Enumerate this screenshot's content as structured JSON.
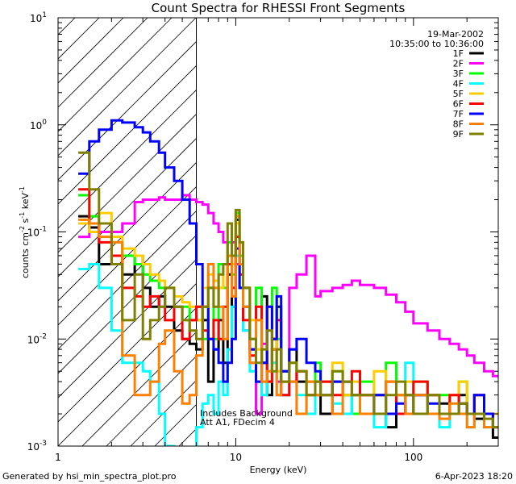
{
  "chart_data": {
    "type": "line",
    "title": "Count Spectra for RHESSI Front Segments",
    "xlabel": "Energy (keV)",
    "ylabel": "counts cm",
    "ylabel_sup1": "-2",
    "ylabel_mid": " s",
    "ylabel_sup2": "-1",
    "ylabel_end": " keV",
    "ylabel_sup3": "-1",
    "xscale": "log",
    "yscale": "log",
    "xlim": [
      1,
      300
    ],
    "ylim": [
      0.001,
      10
    ],
    "x_ticks": [
      {
        "value": 1,
        "label": "1"
      },
      {
        "value": 10,
        "label": "10"
      },
      {
        "value": 100,
        "label": "100"
      }
    ],
    "y_ticks": [
      {
        "value": 0.001,
        "base": "10",
        "exp": "-3"
      },
      {
        "value": 0.01,
        "base": "10",
        "exp": "-2"
      },
      {
        "value": 0.1,
        "base": "10",
        "exp": "-1"
      },
      {
        "value": 1,
        "base": "10",
        "exp": "0"
      },
      {
        "value": 10,
        "base": "10",
        "exp": "1"
      }
    ],
    "attenuator_shade_xrange": [
      1,
      6
    ],
    "legend_position": "top-right",
    "date": "19-Mar-2002",
    "time_range": "10:35:00 to 10:36:00",
    "annotation_line1": "Includes Background",
    "annotation_line2": "Att A1, FDecim 4",
    "series": [
      {
        "name": "1F",
        "color": "#000000",
        "x": [
          1.3,
          1.5,
          1.7,
          2.0,
          2.3,
          2.7,
          3.0,
          3.3,
          3.7,
          4.0,
          4.5,
          5.0,
          5.5,
          6.0,
          6.5,
          7,
          7.5,
          8,
          8.5,
          9,
          9.5,
          10,
          10.5,
          11,
          12,
          13,
          14,
          15,
          16,
          17,
          18,
          20,
          22,
          25,
          28,
          30,
          35,
          40,
          45,
          50,
          60,
          70,
          80,
          90,
          100,
          120,
          140,
          160,
          180,
          200,
          220,
          250,
          280
        ],
        "y": [
          0.14,
          0.11,
          0.05,
          0.06,
          0.04,
          0.06,
          0.03,
          0.02,
          0.025,
          0.02,
          0.012,
          0.01,
          0.009,
          0.008,
          0.015,
          0.004,
          0.008,
          0.015,
          0.006,
          0.04,
          0.02,
          0.13,
          0.05,
          0.03,
          0.008,
          0.004,
          0.025,
          0.003,
          0.008,
          0.02,
          0.005,
          0.008,
          0.004,
          0.004,
          0.003,
          0.002,
          0.004,
          0.003,
          0.002,
          0.003,
          0.002,
          0.0015,
          0.003,
          0.002,
          0.003,
          0.002,
          0.0025,
          0.002,
          0.003,
          0.002,
          0.0018,
          0.002,
          0.0012
        ]
      },
      {
        "name": "2F",
        "color": "#ff00ff",
        "x": [
          1.3,
          1.5,
          1.7,
          2.0,
          2.3,
          2.7,
          3.0,
          3.3,
          3.7,
          4.0,
          4.5,
          5.0,
          5.5,
          6.0,
          6.5,
          7,
          7.5,
          8,
          8.5,
          9,
          9.5,
          10,
          10.5,
          11,
          12,
          13,
          14,
          15,
          16,
          17,
          18,
          20,
          22,
          25,
          28,
          30,
          35,
          40,
          45,
          50,
          60,
          70,
          80,
          90,
          100,
          120,
          140,
          160,
          180,
          200,
          220,
          250,
          280
        ],
        "y": [
          0.09,
          0.12,
          0.1,
          0.1,
          0.12,
          0.19,
          0.2,
          0.2,
          0.21,
          0.2,
          0.2,
          0.22,
          0.2,
          0.19,
          0.18,
          0.15,
          0.12,
          0.1,
          0.08,
          0.06,
          0.08,
          0.05,
          0.03,
          0.012,
          0.006,
          0.002,
          0.009,
          0.02,
          0.006,
          0.004,
          0.003,
          0.03,
          0.04,
          0.06,
          0.025,
          0.028,
          0.03,
          0.032,
          0.035,
          0.032,
          0.03,
          0.026,
          0.022,
          0.018,
          0.014,
          0.012,
          0.01,
          0.009,
          0.008,
          0.007,
          0.006,
          0.005,
          0.0045
        ]
      },
      {
        "name": "3F",
        "color": "#00ff00",
        "x": [
          1.3,
          1.5,
          1.7,
          2.0,
          2.3,
          2.7,
          3.0,
          3.3,
          3.7,
          4.0,
          4.5,
          5.0,
          5.5,
          6.0,
          6.5,
          7,
          7.5,
          8,
          8.5,
          9,
          9.5,
          10,
          10.5,
          11,
          12,
          13,
          14,
          15,
          16,
          17,
          18,
          20,
          22,
          25,
          28,
          30,
          35,
          40,
          45,
          50,
          60,
          70,
          80,
          90,
          100,
          120,
          140,
          160,
          180,
          200,
          220,
          250,
          280
        ],
        "y": [
          0.22,
          0.14,
          0.12,
          0.08,
          0.06,
          0.05,
          0.04,
          0.035,
          0.03,
          0.03,
          0.02,
          0.02,
          0.015,
          0.02,
          0.01,
          0.03,
          0.01,
          0.05,
          0.03,
          0.08,
          0.04,
          0.15,
          0.06,
          0.02,
          0.01,
          0.03,
          0.006,
          0.004,
          0.03,
          0.01,
          0.004,
          0.006,
          0.005,
          0.003,
          0.006,
          0.004,
          0.005,
          0.003,
          0.002,
          0.004,
          0.003,
          0.006,
          0.002,
          0.003,
          0.004,
          0.002,
          0.003,
          0.002,
          0.004,
          0.002,
          0.003,
          0.002,
          0.002
        ]
      },
      {
        "name": "4F",
        "color": "#00ffff",
        "x": [
          1.3,
          1.5,
          1.7,
          2.0,
          2.3,
          2.7,
          3.0,
          3.3,
          3.7,
          4.0,
          4.5,
          5.0,
          5.5,
          6.0,
          6.5,
          7,
          7.5,
          8,
          8.5,
          9,
          9.5,
          10,
          10.5,
          11,
          12,
          13,
          14,
          15,
          16,
          17,
          18,
          20,
          22,
          25,
          28,
          30,
          35,
          40,
          45,
          50,
          60,
          70,
          80,
          90,
          100,
          120,
          140,
          160,
          180,
          200,
          220,
          250,
          280
        ],
        "y": [
          0.045,
          0.05,
          0.03,
          0.012,
          0.006,
          0.006,
          0.005,
          0.004,
          0.002,
          0.001,
          0.0008,
          0.0007,
          0.0008,
          0.0015,
          0.0025,
          0.003,
          0.002,
          0.004,
          0.003,
          0.008,
          0.02,
          0.06,
          0.03,
          0.012,
          0.005,
          0.004,
          0.003,
          0.004,
          0.006,
          0.003,
          0.003,
          0.004,
          0.003,
          0.002,
          0.004,
          0.003,
          0.0025,
          0.002,
          0.003,
          0.002,
          0.0015,
          0.002,
          0.003,
          0.006,
          0.002,
          0.003,
          0.0015,
          0.002,
          0.002,
          0.0015,
          0.002,
          0.0015,
          0.0015
        ]
      },
      {
        "name": "5F",
        "color": "#ffcc00",
        "x": [
          1.3,
          1.5,
          1.7,
          2.0,
          2.3,
          2.7,
          3.0,
          3.3,
          3.7,
          4.0,
          4.5,
          5.0,
          5.5,
          6.0,
          6.5,
          7,
          7.5,
          8,
          8.5,
          9,
          9.5,
          10,
          10.5,
          11,
          12,
          13,
          14,
          15,
          16,
          17,
          18,
          20,
          22,
          25,
          28,
          30,
          35,
          40,
          45,
          50,
          60,
          70,
          80,
          90,
          100,
          120,
          140,
          160,
          180,
          200,
          220,
          250,
          280
        ],
        "y": [
          0.12,
          0.1,
          0.15,
          0.09,
          0.07,
          0.06,
          0.05,
          0.04,
          0.035,
          0.03,
          0.025,
          0.022,
          0.02,
          0.015,
          0.03,
          0.04,
          0.035,
          0.03,
          0.05,
          0.06,
          0.05,
          0.12,
          0.08,
          0.03,
          0.015,
          0.008,
          0.004,
          0.005,
          0.01,
          0.005,
          0.004,
          0.006,
          0.005,
          0.004,
          0.003,
          0.004,
          0.006,
          0.003,
          0.004,
          0.003,
          0.005,
          0.004,
          0.003,
          0.004,
          0.003,
          0.003,
          0.002,
          0.003,
          0.004,
          0.002,
          0.003,
          0.002,
          0.002
        ]
      },
      {
        "name": "6F",
        "color": "#ff0000",
        "x": [
          1.3,
          1.5,
          1.7,
          2.0,
          2.3,
          2.7,
          3.0,
          3.3,
          3.7,
          4.0,
          4.5,
          5.0,
          5.5,
          6.0,
          6.5,
          7,
          7.5,
          8,
          8.5,
          9,
          9.5,
          10,
          10.5,
          11,
          12,
          13,
          14,
          15,
          16,
          17,
          18,
          20,
          22,
          25,
          28,
          30,
          35,
          40,
          45,
          50,
          60,
          70,
          80,
          90,
          100,
          120,
          140,
          160,
          180,
          200,
          220,
          250,
          280
        ],
        "y": [
          0.25,
          0.12,
          0.08,
          0.06,
          0.03,
          0.025,
          0.02,
          0.025,
          0.02,
          0.015,
          0.02,
          0.01,
          0.015,
          0.02,
          0.012,
          0.01,
          0.015,
          0.01,
          0.02,
          0.05,
          0.03,
          0.09,
          0.04,
          0.015,
          0.007,
          0.02,
          0.006,
          0.004,
          0.01,
          0.015,
          0.003,
          0.004,
          0.005,
          0.003,
          0.004,
          0.004,
          0.003,
          0.004,
          0.005,
          0.003,
          0.003,
          0.004,
          0.002,
          0.003,
          0.004,
          0.003,
          0.002,
          0.003,
          0.0025,
          0.002,
          0.003,
          0.002,
          0.0015
        ]
      },
      {
        "name": "7F",
        "color": "#0000ff",
        "x": [
          1.3,
          1.5,
          1.7,
          2.0,
          2.3,
          2.7,
          3.0,
          3.3,
          3.7,
          4.0,
          4.5,
          5.0,
          5.5,
          6.0,
          6.5,
          7,
          7.5,
          8,
          8.5,
          9,
          9.5,
          10,
          10.5,
          11,
          12,
          13,
          14,
          15,
          16,
          17,
          18,
          20,
          22,
          25,
          28,
          30,
          35,
          40,
          45,
          50,
          60,
          70,
          80,
          90,
          100,
          120,
          140,
          160,
          180,
          200,
          220,
          250,
          280
        ],
        "y": [
          0.35,
          0.7,
          0.9,
          1.1,
          1.05,
          0.95,
          0.85,
          0.7,
          0.55,
          0.4,
          0.3,
          0.2,
          0.12,
          0.05,
          0.02,
          0.01,
          0.008,
          0.006,
          0.004,
          0.006,
          0.01,
          0.07,
          0.03,
          0.02,
          0.008,
          0.004,
          0.006,
          0.02,
          0.01,
          0.025,
          0.005,
          0.008,
          0.01,
          0.006,
          0.005,
          0.003,
          0.004,
          0.004,
          0.003,
          0.002,
          0.003,
          0.002,
          0.0025,
          0.002,
          0.003,
          0.0025,
          0.002,
          0.002,
          0.0025,
          0.002,
          0.003,
          0.002,
          0.0015
        ]
      },
      {
        "name": "8F",
        "color": "#ff7f00",
        "x": [
          1.3,
          1.5,
          1.7,
          2.0,
          2.3,
          2.7,
          3.0,
          3.3,
          3.7,
          4.0,
          4.5,
          5.0,
          5.5,
          6.0,
          6.5,
          7,
          7.5,
          8,
          8.5,
          9,
          9.5,
          10,
          10.5,
          11,
          12,
          13,
          14,
          15,
          16,
          17,
          18,
          20,
          22,
          25,
          28,
          30,
          35,
          40,
          45,
          50,
          60,
          70,
          80,
          90,
          100,
          120,
          140,
          160,
          180,
          200,
          220,
          250,
          280
        ],
        "y": [
          0.13,
          0.12,
          0.09,
          0.08,
          0.007,
          0.003,
          0.003,
          0.004,
          0.009,
          0.012,
          0.005,
          0.0025,
          0.003,
          0.007,
          0.02,
          0.05,
          0.03,
          0.02,
          0.01,
          0.06,
          0.025,
          0.14,
          0.05,
          0.02,
          0.006,
          0.015,
          0.004,
          0.005,
          0.008,
          0.003,
          0.004,
          0.004,
          0.002,
          0.004,
          0.003,
          0.003,
          0.002,
          0.004,
          0.003,
          0.002,
          0.002,
          0.004,
          0.003,
          0.002,
          0.003,
          0.002,
          0.0018,
          0.0025,
          0.002,
          0.0015,
          0.002,
          0.0015,
          0.0015
        ]
      },
      {
        "name": "9F",
        "color": "#808000",
        "x": [
          1.3,
          1.5,
          1.7,
          2.0,
          2.3,
          2.7,
          3.0,
          3.3,
          3.7,
          4.0,
          4.5,
          5.0,
          5.5,
          6.0,
          6.5,
          7,
          7.5,
          8,
          8.5,
          9,
          9.5,
          10,
          10.5,
          11,
          12,
          13,
          14,
          15,
          16,
          17,
          18,
          20,
          22,
          25,
          28,
          30,
          35,
          40,
          45,
          50,
          60,
          70,
          80,
          90,
          100,
          120,
          140,
          160,
          180,
          200,
          220,
          250,
          280
        ],
        "y": [
          0.55,
          0.25,
          0.12,
          0.05,
          0.015,
          0.04,
          0.01,
          0.015,
          0.02,
          0.03,
          0.02,
          0.015,
          0.012,
          0.01,
          0.02,
          0.03,
          0.02,
          0.04,
          0.05,
          0.12,
          0.06,
          0.16,
          0.08,
          0.03,
          0.01,
          0.006,
          0.008,
          0.012,
          0.005,
          0.008,
          0.004,
          0.006,
          0.005,
          0.003,
          0.004,
          0.003,
          0.005,
          0.004,
          0.003,
          0.003,
          0.002,
          0.003,
          0.004,
          0.003,
          0.002,
          0.003,
          0.002,
          0.002,
          0.0025,
          0.002,
          0.002,
          0.0018,
          0.0015
        ]
      }
    ]
  },
  "footer": {
    "left": "Generated by hsi_min_spectra_plot.pro",
    "right": "6-Apr-2023 18:20"
  }
}
